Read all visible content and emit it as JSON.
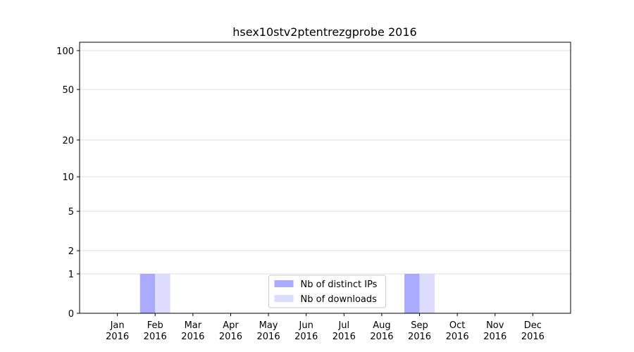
{
  "chart_data": {
    "type": "bar",
    "title": "hsex10stv2ptentrezgprobe 2016",
    "categories": [
      "Jan 2016",
      "Feb 2016",
      "Mar 2016",
      "Apr 2016",
      "May 2016",
      "Jun 2016",
      "Jul 2016",
      "Aug 2016",
      "Sep 2016",
      "Oct 2016",
      "Nov 2016",
      "Dec 2016"
    ],
    "series": [
      {
        "name": "Nb of distinct IPs",
        "color": "#aaaaff",
        "values": [
          0,
          1,
          0,
          0,
          0,
          0,
          0,
          0,
          1,
          0,
          0,
          0
        ]
      },
      {
        "name": "Nb of downloads",
        "color": "#dcdcfc",
        "values": [
          0,
          1,
          0,
          0,
          0,
          0,
          0,
          0,
          1,
          0,
          0,
          0
        ]
      }
    ],
    "yscale": "log1p",
    "ylim": [
      0,
      116
    ],
    "yticks": [
      0,
      1,
      2,
      5,
      10,
      20,
      50,
      100
    ],
    "grid": true,
    "legend": "lower center"
  }
}
